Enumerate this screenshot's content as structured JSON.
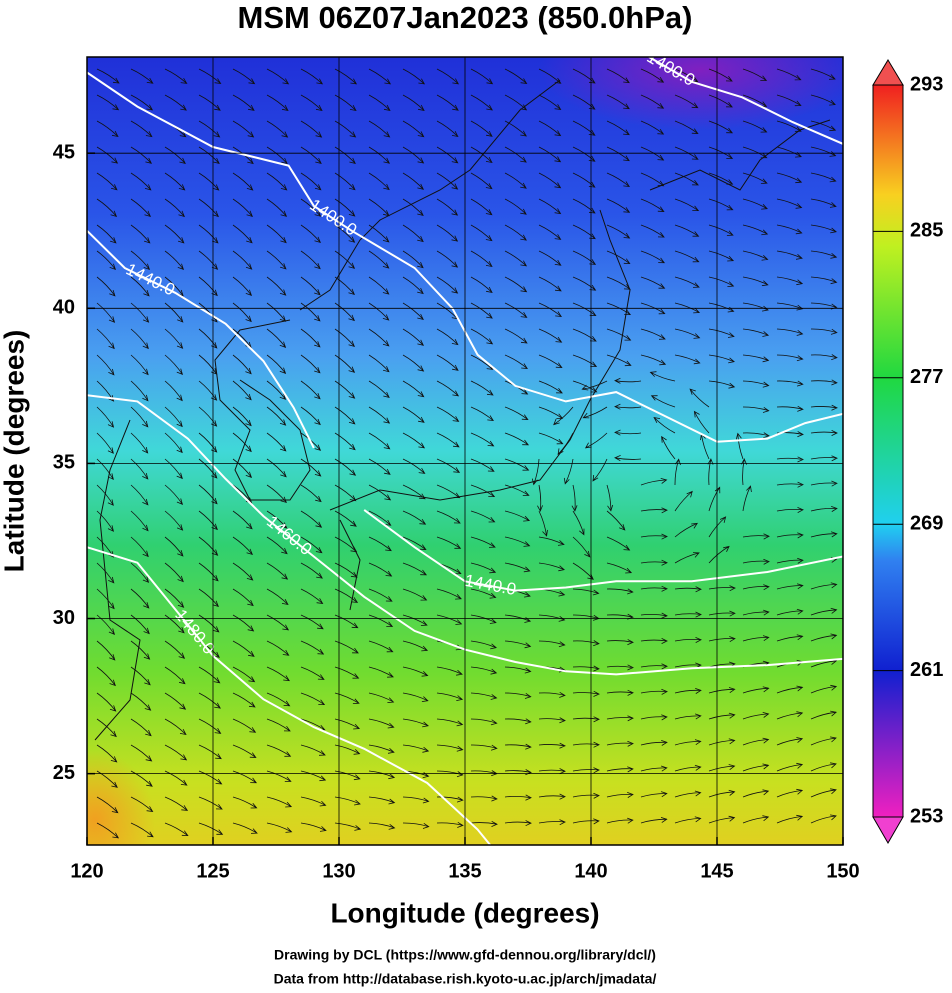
{
  "chart_data": {
    "type": "contour",
    "title": "MSM 06Z07Jan2023 (850.0hPa)",
    "x_label": "Longitude (degrees)",
    "y_label": "Latitude  (degrees)",
    "xlim": [
      120,
      150
    ],
    "xticks": [
      120,
      125,
      130,
      135,
      140,
      145,
      150
    ],
    "ylim": [
      22.7,
      48.1
    ],
    "yticks": [
      25,
      30,
      35,
      40,
      45
    ],
    "grid": true,
    "colorbar": {
      "lim": [
        253,
        293
      ],
      "ticks": [
        253,
        261,
        269,
        277,
        285,
        293
      ]
    },
    "contours": [
      {
        "label": "1400.0",
        "lon": [
          120,
          122,
          125,
          128,
          129,
          130.5,
          133,
          134.5,
          135.5,
          137,
          139,
          141,
          143,
          145,
          147,
          148.5,
          150
        ],
        "lat": [
          47.6,
          46.5,
          45.2,
          44.6,
          43.3,
          42.5,
          41.3,
          40,
          38.5,
          37.5,
          37,
          37.3,
          36.5,
          35.7,
          35.8,
          36.3,
          36.6
        ]
      },
      {
        "label": "1400.0",
        "lon": [
          142.3,
          144,
          146,
          148,
          150
        ],
        "lat": [
          48.1,
          47.3,
          46.8,
          46,
          45.3
        ]
      },
      {
        "label": "1440.0",
        "lon": [
          120,
          121.5,
          123.5,
          125.5,
          127,
          128.2,
          129
        ],
        "lat": [
          42.5,
          41.3,
          40.5,
          39.5,
          38.3,
          36.8,
          35.5
        ]
      },
      {
        "label": "1440.0",
        "lon": [
          131,
          133,
          135,
          137,
          139,
          141,
          144,
          147,
          150
        ],
        "lat": [
          33.5,
          32.3,
          31.2,
          30.9,
          31,
          31.2,
          31.2,
          31.5,
          32
        ]
      },
      {
        "label": "1460.0",
        "lon": [
          120,
          122,
          124,
          125.5,
          127,
          129,
          131,
          133,
          135,
          137,
          139,
          141,
          144,
          147,
          150
        ],
        "lat": [
          37.2,
          37,
          35.8,
          34.5,
          33.3,
          32,
          30.7,
          29.6,
          29,
          28.6,
          28.3,
          28.2,
          28.4,
          28.5,
          28.7
        ]
      },
      {
        "label": "1480.0",
        "lon": [
          120,
          122,
          123.5,
          125,
          127,
          129,
          131,
          133.5,
          135.5,
          136
        ],
        "lat": [
          32.3,
          31.8,
          30.3,
          28.8,
          27.4,
          26.5,
          25.8,
          24.7,
          23.2,
          22.7
        ]
      }
    ],
    "footer": [
      "Drawing by DCL (https://www.gfd-dennou.org/library/dcl/)",
      "Data from http://database.rish.kyoto-u.ac.jp/arch/jmadata/"
    ]
  }
}
